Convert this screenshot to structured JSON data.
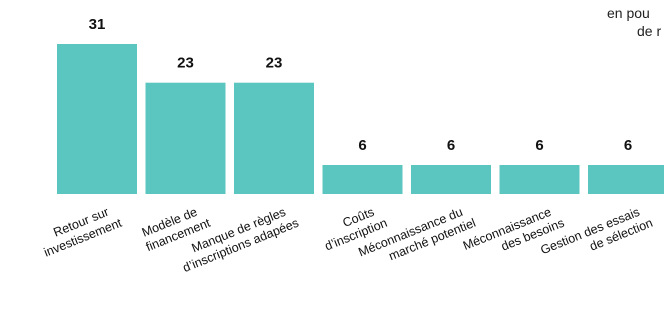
{
  "chart_data": {
    "type": "bar",
    "categories": [
      [
        "Retour sur",
        "investissement"
      ],
      [
        "Modèle de",
        "financement"
      ],
      [
        "Manque de règles",
        "d’inscriptions adapées"
      ],
      [
        "Coûts",
        "d’inscription"
      ],
      [
        "Méconnaissance du",
        "marché potentiel"
      ],
      [
        "Méconnaissance",
        "des besoins"
      ],
      [
        "Gestion des essais",
        "de sélection"
      ]
    ],
    "values": [
      31,
      23,
      23,
      6,
      6,
      6,
      6
    ],
    "value_labels": [
      "31",
      "23",
      "23",
      "6",
      "6",
      "6",
      "6"
    ],
    "bar_color": "#5bc5bf",
    "ylim": [
      0,
      31
    ],
    "grid": false,
    "legend": "none",
    "annotation_lines": [
      "en pou",
      "de r"
    ]
  }
}
